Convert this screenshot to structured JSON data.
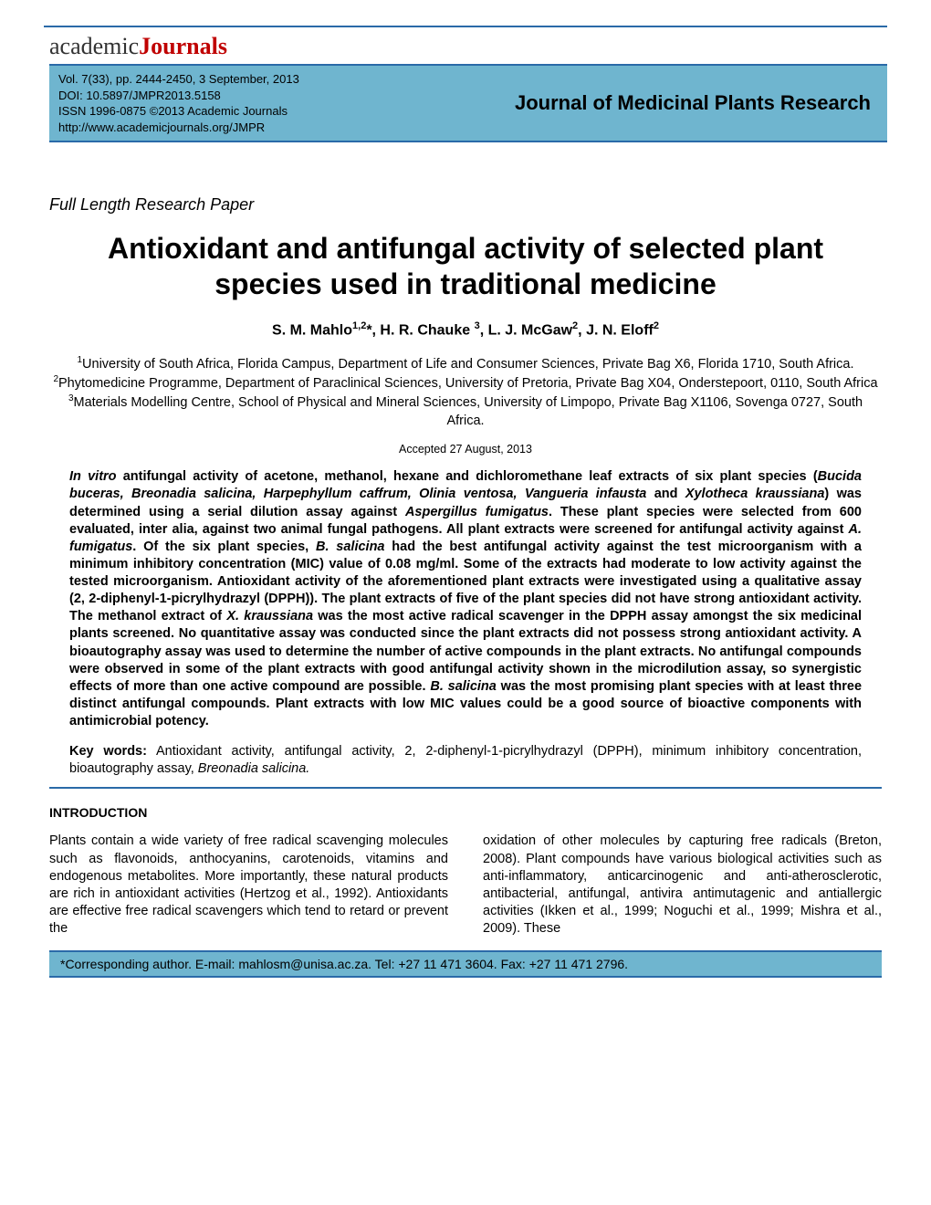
{
  "logo": {
    "left": "academic",
    "right": "Journals"
  },
  "header": {
    "vol": "Vol. 7(33), pp. 2444-2450, 3 September, 2013",
    "doi": "DOI: 10.5897/JMPR2013.5158",
    "issn": "ISSN 1996-0875 ©2013 Academic Journals",
    "url": "http://www.academicjournals.org/JMPR",
    "journal": "Journal of Medicinal Plants Research"
  },
  "article_type": "Full Length Research Paper",
  "title": "Antioxidant and antifungal activity of selected plant species used in traditional medicine",
  "authors_html": "S. M. Mahlo<sup>1,2</sup>*, H. R. Chauke <sup>3</sup>, L. J. McGaw<sup>2</sup>, J. N. Eloff<sup>2</sup>",
  "affiliations_html": "<sup>1</sup>University of South Africa, Florida Campus, Department of Life and Consumer Sciences, Private Bag X6, Florida 1710, South Africa.<br><sup>2</sup>Phytomedicine Programme, Department of Paraclinical Sciences, University of Pretoria, Private Bag X04, Onderstepoort, 0110, South Africa<br><sup>3</sup>Materials Modelling Centre, School of Physical and Mineral Sciences, University of Limpopo, Private Bag X1106, Sovenga 0727, South Africa.",
  "accepted": "Accepted 27 August, 2013",
  "abstract_html": "<span class=\"ital\">In vitro</span> antifungal activity of acetone, methanol, hexane and dichloromethane leaf extracts of six plant species (<span class=\"ital\">Bucida buceras, Breonadia salicina, Harpephyllum caffrum, Olinia ventosa, Vangueria infausta</span> and <span class=\"ital\">Xylotheca kraussiana</span>) was determined using a serial dilution assay against <span class=\"ital\">Aspergillus fumigatus</span>. These plant species were selected from 600 evaluated, inter alia, against two animal fungal pathogens. All plant extracts were screened for antifungal activity against <span class=\"ital\">A. fumigatus</span>. Of the six plant species, <span class=\"ital\">B. salicina</span> had the best antifungal activity against the test microorganism with a minimum inhibitory concentration (MIC) value of 0.08 mg/ml. Some of the extracts had moderate to low activity against the tested microorganism. Antioxidant activity of the aforementioned plant extracts were investigated using a qualitative assay (2, 2-diphenyl-1-picrylhydrazyl (DPPH)). The plant extracts of five of the plant species did not have strong antioxidant activity. The methanol extract of <span class=\"ital\">X. kraussiana</span> was the most active radical scavenger in the DPPH assay amongst the six medicinal plants screened. No quantitative assay was conducted since the plant extracts did not possess strong antioxidant activity. A bioautography assay was used to determine the number of active compounds in the plant extracts. No antifungal compounds were observed in some of the plant extracts with good antifungal activity shown in the microdilution assay, so synergistic effects of more than one active compound are possible. <span class=\"ital\">B. salicina</span> was the most promising plant species with at least three distinct antifungal compounds. Plant extracts with low MIC values could be a good source of bioactive components with antimicrobial potency.",
  "keywords_html": "<b>Key words:</b> Antioxidant activity, antifungal activity, 2, 2-diphenyl-1-picrylhydrazyl (DPPH), minimum inhibitory concentration, bioautography assay, <span class=\"ital\">Breonadia salicina.</span>",
  "intro_heading": "INTRODUCTION",
  "intro_col1": "Plants contain a wide variety of free radical scavenging molecules such as flavonoids, anthocyanins, carotenoids, vitamins and endogenous metabolites. More importantly, these natural products are rich in antioxidant activities (Hertzog et al., 1992). Antioxidants are effective free radical scavengers which tend to retard or prevent the",
  "intro_col2": "oxidation of other molecules by capturing free radicals (Breton, 2008). Plant compounds have various biological activities such as anti-inflammatory, anticarcinogenic and anti-atherosclerotic, antibacterial, antifungal, antivira antimutagenic and antiallergic activities (Ikken et al., 1999; Noguchi et al., 1999; Mishra et al., 2009). These",
  "footer": "*Corresponding author. E-mail: mahlosm@unisa.ac.za. Tel: +27 11 471 3604. Fax: +27 11 471 2796."
}
